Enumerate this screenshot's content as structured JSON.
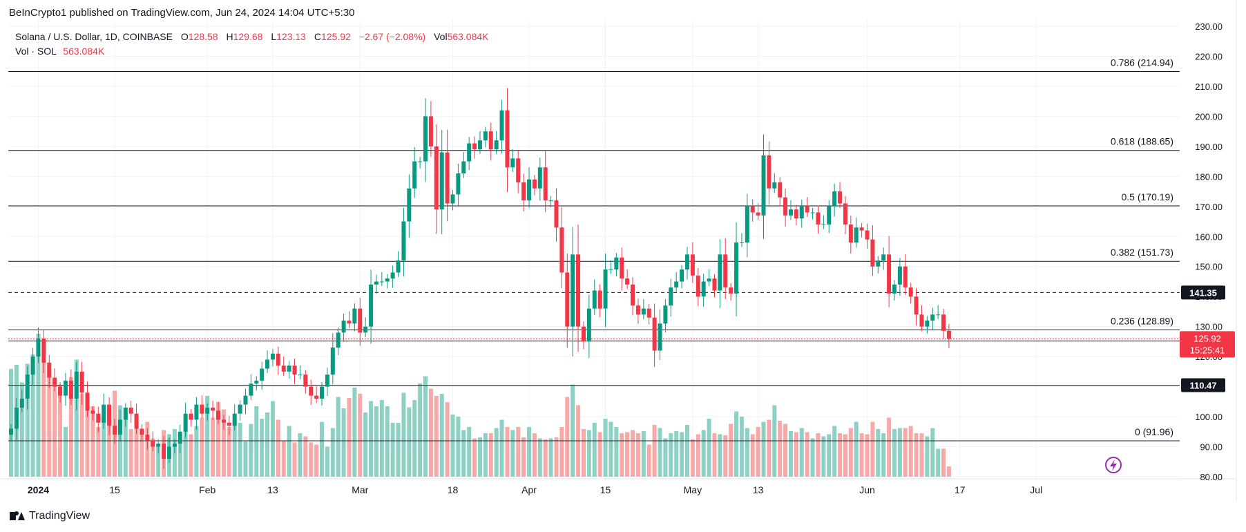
{
  "publisher": "BeInCrypto1 published on TradingView.com, Jun 24, 2024 14:04 UTC+5:30",
  "brand": "TradingView",
  "chart_data": {
    "type": "candlestick",
    "symbol_label": "Solana / U.S. Dollar, 1D, COINBASE",
    "ohlc": {
      "o_label": "O",
      "o": "128.58",
      "h_label": "H",
      "h": "129.68",
      "l_label": "L",
      "l": "123.13",
      "c_label": "C",
      "c": "125.92",
      "change": "−2.67 (−2.08%)",
      "vol_label": "Vol",
      "vol": "563.084K"
    },
    "volume_legend": {
      "label": "Vol · SOL",
      "value": "563.084K"
    },
    "y_axis": {
      "min": 80,
      "max": 230,
      "step": 10,
      "ticks": [
        "80.00",
        "90.00",
        "100.00",
        "110.00",
        "120.00",
        "130.00",
        "140.00",
        "150.00",
        "160.00",
        "170.00",
        "180.00",
        "190.00",
        "200.00",
        "210.00",
        "220.00",
        "230.00"
      ]
    },
    "x_axis": {
      "ticks": [
        {
          "label": "2024",
          "index": 5,
          "bold": true
        },
        {
          "label": "15",
          "index": 19
        },
        {
          "label": "Feb",
          "index": 36
        },
        {
          "label": "13",
          "index": 48
        },
        {
          "label": "Mar",
          "index": 64
        },
        {
          "label": "18",
          "index": 81
        },
        {
          "label": "Apr",
          "index": 95
        },
        {
          "label": "15",
          "index": 109
        },
        {
          "label": "May",
          "index": 125
        },
        {
          "label": "13",
          "index": 137
        },
        {
          "label": "Jun",
          "index": 157
        },
        {
          "label": "17",
          "index": 174
        },
        {
          "label": "Jul",
          "index": 188
        }
      ]
    },
    "fib_levels": [
      {
        "value": 214.94,
        "label": "0.786 (214.94)"
      },
      {
        "value": 188.65,
        "label": "0.618 (188.65)"
      },
      {
        "value": 170.19,
        "label": "0.5 (170.19)"
      },
      {
        "value": 151.73,
        "label": "0.382 (151.73)"
      },
      {
        "value": 128.89,
        "label": "0.236 (128.89)"
      },
      {
        "value": 91.96,
        "label": "0 (91.96)"
      }
    ],
    "support_resistance": [
      {
        "value": 141.35,
        "label": "141.35",
        "style": "dashed"
      },
      {
        "value": 125.17,
        "label": "125.17",
        "style": "solid"
      },
      {
        "value": 110.47,
        "label": "110.47",
        "style": "solid"
      }
    ],
    "last_price": {
      "value": 125.92,
      "label": "125.92",
      "countdown": "15:25:41"
    },
    "closes": [
      96,
      103,
      106,
      114,
      120,
      126,
      118,
      113,
      110,
      107,
      112,
      106,
      115,
      108,
      102,
      101,
      98,
      104,
      97,
      94,
      99,
      103,
      101,
      96,
      94,
      92,
      90,
      91,
      86,
      90,
      91,
      95,
      101,
      99,
      104,
      101,
      103,
      102,
      99,
      98,
      97,
      101,
      104,
      107,
      111,
      112,
      116,
      119,
      121,
      117,
      115,
      117,
      114,
      114,
      110,
      107,
      106,
      110,
      114,
      123,
      128,
      132,
      131,
      136,
      128,
      130,
      144,
      145,
      145,
      146,
      148,
      152,
      165,
      176,
      185,
      185,
      200,
      190,
      169,
      188,
      171,
      174,
      181,
      185,
      191,
      189,
      192,
      195,
      189,
      192,
      202,
      183,
      186,
      178,
      172,
      179,
      176,
      183,
      172,
      172,
      163,
      148,
      130,
      154,
      130,
      125,
      136,
      142,
      136,
      149,
      149,
      153,
      146,
      144,
      137,
      134,
      136,
      133,
      122,
      131,
      137,
      143,
      145,
      149,
      154,
      147,
      140,
      145,
      146,
      142,
      154,
      143,
      141,
      158,
      158,
      170,
      168,
      167,
      187,
      176,
      178,
      173,
      167,
      169,
      166,
      170,
      168,
      168,
      164,
      164,
      170,
      175,
      171,
      164,
      158,
      163,
      162,
      159,
      150,
      152,
      154,
      141,
      144,
      150,
      143,
      140,
      134,
      130,
      132,
      134,
      134,
      128.58,
      125.92
    ],
    "volumes": [
      1.04,
      1.08,
      0.91,
      1.09,
      1.18,
      1.38,
      1.13,
      1.01,
      0.93,
      0.89,
      0.48,
      0.96,
      1.13,
      0.8,
      0.75,
      0.68,
      0.48,
      0.57,
      0.64,
      0.83,
      0.69,
      0.62,
      0.46,
      0.53,
      0.44,
      0.53,
      0.37,
      0.32,
      0.45,
      0.41,
      0.46,
      0.34,
      0.58,
      0.41,
      0.49,
      0.57,
      0.78,
      0.57,
      0.72,
      0.65,
      0.48,
      0.54,
      0.52,
      0.34,
      0.51,
      0.68,
      0.56,
      0.62,
      0.73,
      0.55,
      0.35,
      0.49,
      0.33,
      0.42,
      0.39,
      0.33,
      0.31,
      0.53,
      0.29,
      0.47,
      0.77,
      0.66,
      0.76,
      0.86,
      0.8,
      0.62,
      0.73,
      0.68,
      0.74,
      0.68,
      0.52,
      0.52,
      0.81,
      0.67,
      0.74,
      0.9,
      0.97,
      0.85,
      0.78,
      0.8,
      0.72,
      0.6,
      0.58,
      0.45,
      0.48,
      0.37,
      0.38,
      0.42,
      0.42,
      0.47,
      0.55,
      0.48,
      0.45,
      0.48,
      0.38,
      0.48,
      0.42,
      0.37,
      0.36,
      0.37,
      0.38,
      0.48,
      0.77,
      0.89,
      0.69,
      0.46,
      0.45,
      0.52,
      0.43,
      0.56,
      0.53,
      0.48,
      0.42,
      0.43,
      0.45,
      0.42,
      0.44,
      0.31,
      0.5,
      0.47,
      0.37,
      0.42,
      0.44,
      0.43,
      0.5,
      0.36,
      0.41,
      0.45,
      0.56,
      0.42,
      0.41,
      0.4,
      0.51,
      0.63,
      0.58,
      0.47,
      0.41,
      0.48,
      0.53,
      0.55,
      0.69,
      0.54,
      0.51,
      0.44,
      0.43,
      0.47,
      0.43,
      0.37,
      0.42,
      0.39,
      0.41,
      0.49,
      0.42,
      0.41,
      0.47,
      0.53,
      0.42,
      0.41,
      0.53,
      0.46,
      0.42,
      0.57,
      0.46,
      0.47,
      0.47,
      0.49,
      0.42,
      0.42,
      0.39,
      0.47,
      0.27,
      0.27,
      0.1
    ]
  },
  "colors": {
    "up": "#089981",
    "down": "#f23645",
    "up_vol": "#8dd0c4",
    "down_vol": "#f7a9a7",
    "grid": "#f0f3fa",
    "fib_line": "#131722",
    "axis_text": "#131722",
    "price_tag": "#f23645",
    "sr_tag": "#131722",
    "lightning": "#9c27b0"
  },
  "icons": {
    "brand": "tradingview-logo-icon",
    "replay": "lightning-icon"
  }
}
